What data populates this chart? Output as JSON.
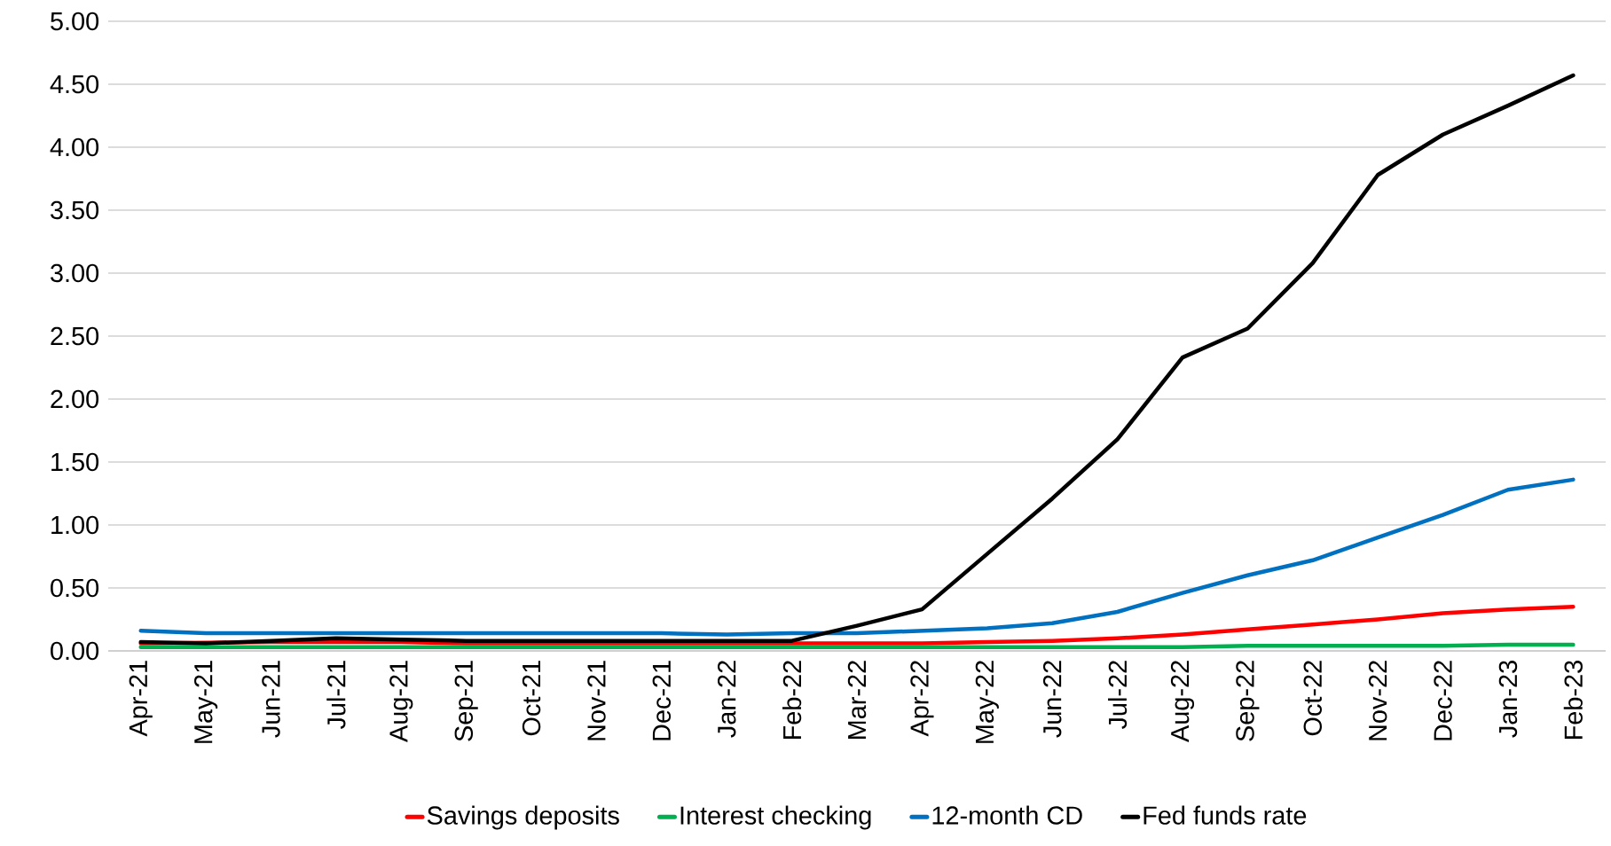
{
  "chart_data": {
    "type": "line",
    "categories": [
      "Apr-21",
      "May-21",
      "Jun-21",
      "Jul-21",
      "Aug-21",
      "Sep-21",
      "Oct-21",
      "Nov-21",
      "Dec-21",
      "Jan-22",
      "Feb-22",
      "Mar-22",
      "Apr-22",
      "May-22",
      "Jun-22",
      "Jul-22",
      "Aug-22",
      "Sep-22",
      "Oct-22",
      "Nov-22",
      "Dec-22",
      "Jan-23",
      "Feb-23"
    ],
    "series": [
      {
        "name": "Savings deposits",
        "color": "#ff0000",
        "values": [
          0.06,
          null,
          0.07,
          0.07,
          0.07,
          0.06,
          0.06,
          0.06,
          0.06,
          0.06,
          0.06,
          0.06,
          0.06,
          0.07,
          0.08,
          0.1,
          0.13,
          0.17,
          0.21,
          0.25,
          0.3,
          0.33,
          0.35
        ]
      },
      {
        "name": "Interest checking",
        "color": "#00b050",
        "values": [
          0.03,
          0.03,
          0.03,
          0.03,
          0.03,
          0.03,
          0.03,
          0.03,
          0.03,
          0.03,
          0.03,
          0.03,
          0.03,
          0.03,
          0.03,
          0.03,
          0.03,
          0.04,
          0.04,
          0.04,
          0.04,
          0.05,
          0.05
        ]
      },
      {
        "name": "12-month CD",
        "color": "#0070c0",
        "values": [
          0.16,
          0.14,
          0.14,
          0.14,
          0.14,
          0.14,
          0.14,
          0.14,
          0.14,
          0.13,
          0.14,
          0.14,
          0.16,
          0.18,
          0.22,
          0.31,
          0.46,
          0.6,
          0.72,
          0.9,
          1.08,
          1.28,
          1.36
        ]
      },
      {
        "name": "Fed funds rate",
        "color": "#000000",
        "values": [
          0.07,
          0.06,
          0.08,
          0.1,
          0.09,
          0.08,
          0.08,
          0.08,
          0.08,
          0.08,
          0.08,
          0.2,
          0.33,
          0.77,
          1.21,
          1.68,
          2.33,
          2.56,
          3.08,
          3.78,
          4.1,
          4.33,
          4.57
        ]
      }
    ],
    "ylim": [
      0,
      5
    ],
    "yticks": [
      {
        "value": 0,
        "label": "0.00"
      },
      {
        "value": 0.5,
        "label": "0.50"
      },
      {
        "value": 1,
        "label": "1.00"
      },
      {
        "value": 1.5,
        "label": "1.50"
      },
      {
        "value": 2,
        "label": "2.00"
      },
      {
        "value": 2.5,
        "label": "2.50"
      },
      {
        "value": 3,
        "label": "3.00"
      },
      {
        "value": 3.5,
        "label": "3.50"
      },
      {
        "value": 4,
        "label": "4.00"
      },
      {
        "value": 4.5,
        "label": "4.50"
      },
      {
        "value": 5,
        "label": "5.00"
      }
    ],
    "grid": "y",
    "legend": "bottom",
    "marker": "none",
    "line_style": "solid"
  }
}
